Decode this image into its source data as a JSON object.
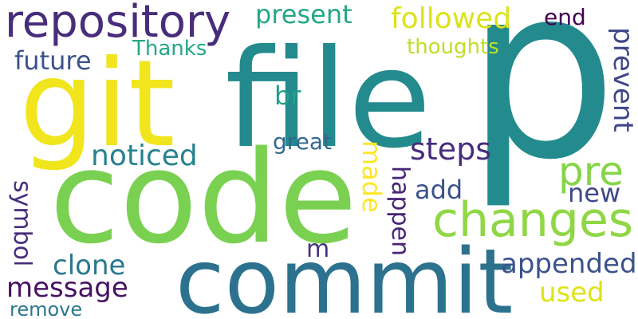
{
  "background": "#ffffff",
  "words": [
    {
      "id": "p",
      "text": "p",
      "color": "#238a8d"
    },
    {
      "id": "file",
      "text": "file",
      "color": "#238a8d"
    },
    {
      "id": "git",
      "text": "git",
      "color": "#f1e51d"
    },
    {
      "id": "code",
      "text": "code",
      "color": "#7ad151"
    },
    {
      "id": "commit",
      "text": "commit",
      "color": "#2c728e"
    },
    {
      "id": "changes",
      "text": "changes",
      "color": "#8fd744"
    },
    {
      "id": "repository",
      "text": "repository",
      "color": "#472d7b"
    },
    {
      "id": "pre",
      "text": "pre",
      "color": "#86d549"
    },
    {
      "id": "present",
      "text": "present",
      "color": "#22a884"
    },
    {
      "id": "followed",
      "text": "followed",
      "color": "#dde318"
    },
    {
      "id": "end",
      "text": "end",
      "color": "#440154"
    },
    {
      "id": "thoughts",
      "text": "thoughts",
      "color": "#bddf26"
    },
    {
      "id": "thanks",
      "text": "Thanks",
      "color": "#22a884"
    },
    {
      "id": "future",
      "text": "future",
      "color": "#3b528b"
    },
    {
      "id": "noticed",
      "text": "noticed",
      "color": "#26828e"
    },
    {
      "id": "steps",
      "text": "steps",
      "color": "#472d7b"
    },
    {
      "id": "great",
      "text": "great",
      "color": "#31688e"
    },
    {
      "id": "br",
      "text": "br",
      "color": "#1fa187"
    },
    {
      "id": "add",
      "text": "add",
      "color": "#3b528b"
    },
    {
      "id": "new",
      "text": "new",
      "color": "#3e4989"
    },
    {
      "id": "clone",
      "text": "clone",
      "color": "#2a788e"
    },
    {
      "id": "message",
      "text": "message",
      "color": "#471164"
    },
    {
      "id": "m",
      "text": "m",
      "color": "#46337e"
    },
    {
      "id": "appended",
      "text": "appended",
      "color": "#3b528b"
    },
    {
      "id": "used",
      "text": "used",
      "color": "#dde318"
    },
    {
      "id": "remove",
      "text": "remove",
      "color": "#2a788e"
    },
    {
      "id": "symbol",
      "text": "symbol",
      "color": "#472d7b"
    },
    {
      "id": "made",
      "text": "made",
      "color": "#fde725"
    },
    {
      "id": "happen",
      "text": "happen",
      "color": "#482475"
    },
    {
      "id": "prevent",
      "text": "prevent",
      "color": "#404688"
    }
  ]
}
